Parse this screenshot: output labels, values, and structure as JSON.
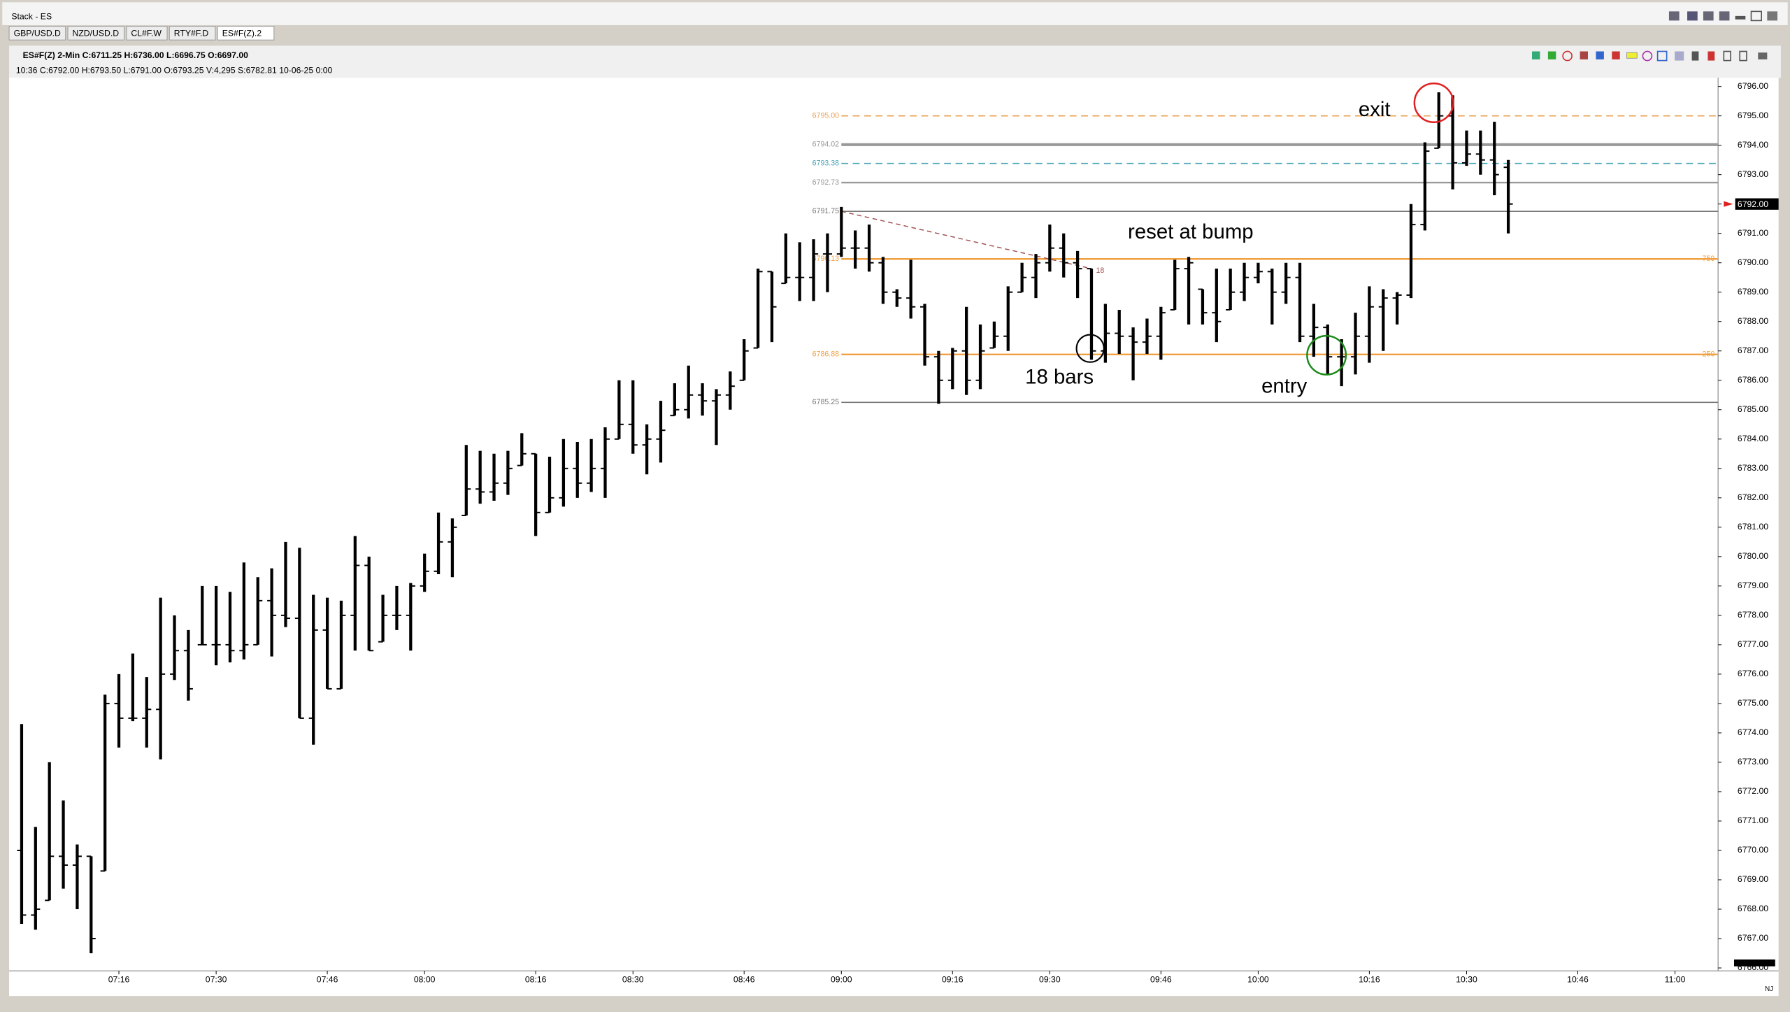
{
  "window": {
    "title": "Stack - ES",
    "tabs": [
      "GBP/USD.D",
      "NZD/USD.D",
      "CL#F.W",
      "RTY#F.D",
      "ES#F(Z).2"
    ],
    "corner": "NJ"
  },
  "header": {
    "line1": "ES#F(Z)  2-Min  C:6711.25  H:6736.00  L:6696.75  O:6697.00",
    "line2": "10:36  C:6792.00  H:6793.50  L:6791.00  O:6793.25  V:4,295  S:6782.81  10-06-25  0:00"
  },
  "annotations": [
    "exit",
    "reset at bump",
    "18 bars",
    "entry"
  ],
  "chart_data": {
    "type": "ohlc",
    "color": "#000000",
    "x": [
      422,
      424,
      426,
      428,
      430,
      432,
      434,
      436,
      438,
      440,
      442,
      444,
      446,
      448,
      450,
      452,
      454,
      456,
      458,
      460,
      462,
      464,
      466,
      468,
      470,
      472,
      474,
      476,
      478,
      480,
      482,
      484,
      486,
      488,
      490,
      492,
      494,
      496,
      498,
      500,
      502,
      504,
      506,
      508,
      510,
      512,
      514,
      516,
      518,
      520,
      522,
      524,
      526,
      528,
      530,
      532,
      534,
      536,
      538,
      540,
      542,
      544,
      546,
      548,
      550,
      552,
      554,
      556,
      558,
      560,
      562,
      564,
      566,
      568,
      570,
      572,
      574,
      576,
      578,
      580,
      582,
      584,
      586,
      588,
      590,
      592,
      594,
      596,
      598,
      600,
      602,
      604,
      606,
      608,
      610,
      612,
      614,
      616,
      618,
      620,
      622,
      624,
      626,
      628,
      630,
      632,
      634,
      636
    ],
    "open": [
      6770,
      6767.8,
      6768.3,
      6769.8,
      6769.5,
      6769.8,
      6769.3,
      6775,
      6774.5,
      6774.5,
      6774.8,
      6776,
      6776.8,
      6777,
      6777,
      6777,
      6776.8,
      6777,
      6778.5,
      6778,
      6777.9,
      6774.5,
      6777.5,
      6775.5,
      6778,
      6779.7,
      6777.1,
      6778,
      6778,
      6779,
      6779.5,
      6780.5,
      6781.4,
      6782.3,
      6782.2,
      6782.5,
      6783.1,
      6783.5,
      6781.5,
      6782,
      6783,
      6782.5,
      6783,
      6784,
      6784.5,
      6783.8,
      6784,
      6784.8,
      6785,
      6785.5,
      6785.3,
      6785.5,
      6786,
      6787.1,
      6789.7,
      6789.3,
      6789.5,
      6789.5,
      6790.3,
      6790.3,
      6790.5,
      6790.5,
      6790,
      6789,
      6788.8,
      6788.5,
      6786.8,
      6786,
      6787,
      6786,
      6787.1,
      6787.5,
      6789,
      6789.5,
      6790,
      6790.5,
      6790,
      6789.8,
      6787,
      6787.6,
      6787.5,
      6787.3,
      6787.5,
      6788.4,
      6789.8,
      6789.1,
      6788.3,
      6788.4,
      6789,
      6789.5,
      6789.7,
      6789,
      6789.5,
      6787.5,
      6787.8,
      6786.8,
      6786.8,
      6787.5,
      6788.5,
      6788.8,
      6788.9,
      6791.3,
      6793.9,
      6795,
      6793.4,
      6793.7,
      6793.5,
      6793.25
    ],
    "high": [
      6774.3,
      6770.8,
      6773,
      6771.7,
      6770.2,
      6769.8,
      6775.3,
      6776,
      6776.7,
      6775.9,
      6778.6,
      6778,
      6777.5,
      6779,
      6779,
      6778.8,
      6779.8,
      6779.3,
      6779.6,
      6780.5,
      6780.3,
      6778.7,
      6778.6,
      6778.5,
      6780.7,
      6780,
      6778.7,
      6779,
      6779.1,
      6780.1,
      6781.5,
      6781.3,
      6783.8,
      6783.6,
      6783.5,
      6783.6,
      6784.2,
      6783.5,
      6783.4,
      6784,
      6783.9,
      6784,
      6784.4,
      6786,
      6786,
      6784.5,
      6785.3,
      6785.9,
      6786.5,
      6785.9,
      6785.7,
      6786.3,
      6787.4,
      6789.8,
      6789.7,
      6791,
      6790.7,
      6790.8,
      6791,
      6791.9,
      6791.1,
      6791.3,
      6790.2,
      6789.1,
      6790.1,
      6788.6,
      6787,
      6787.1,
      6788.5,
      6787.9,
      6788,
      6789.2,
      6790,
      6790.3,
      6791.3,
      6791,
      6790.4,
      6789.8,
      6788.6,
      6788.4,
      6787.8,
      6788.1,
      6788.5,
      6790.1,
      6790.2,
      6789.1,
      6789.8,
      6789.8,
      6790,
      6790,
      6789.8,
      6790,
      6790,
      6788.6,
      6787.9,
      6787.4,
      6788.3,
      6789.2,
      6789.1,
      6789,
      6792,
      6794.1,
      6795.8,
      6795.7,
      6794.5,
      6794.5,
      6794.8,
      6793.5
    ],
    "low": [
      6767.5,
      6767.3,
      6768.3,
      6768.7,
      6768,
      6766.5,
      6769.3,
      6773.5,
      6774.4,
      6773.5,
      6773.1,
      6775.8,
      6775.1,
      6777,
      6776.3,
      6776.4,
      6776.5,
      6777,
      6776.6,
      6777.6,
      6774.5,
      6773.6,
      6775.5,
      6775.5,
      6776.8,
      6776.8,
      6777.1,
      6777.5,
      6776.8,
      6778.8,
      6779.4,
      6779.3,
      6781.4,
      6781.8,
      6781.9,
      6782.1,
      6783.1,
      6780.7,
      6781.5,
      6781.7,
      6782,
      6782.2,
      6782,
      6784,
      6783.5,
      6782.8,
      6783.2,
      6784.8,
      6784.7,
      6784.8,
      6783.8,
      6785,
      6786,
      6787.1,
      6787.3,
      6789.3,
      6788.7,
      6788.7,
      6789,
      6790.2,
      6789.8,
      6789.7,
      6788.6,
      6788.5,
      6788.1,
      6786.5,
      6785.2,
      6785.7,
      6785.5,
      6785.7,
      6787.1,
      6787,
      6789,
      6788.8,
      6789.7,
      6789.5,
      6788.8,
      6786.7,
      6786.6,
      6786.9,
      6786,
      6786.9,
      6786.7,
      6788.4,
      6787.9,
      6787.9,
      6787.3,
      6788.4,
      6788.7,
      6789.3,
      6787.9,
      6788.6,
      6787.3,
      6786.8,
      6786.2,
      6785.8,
      6786.2,
      6786.6,
      6787,
      6787.9,
      6788.8,
      6791.1,
      6793.9,
      6792.5,
      6793.3,
      6793,
      6792.3,
      6791
    ],
    "close": [
      6767.8,
      6768,
      6769.8,
      6769.5,
      6769.8,
      6767,
      6775,
      6774.5,
      6774.5,
      6774.8,
      6776,
      6776.8,
      6775.5,
      6777,
      6777,
      6776.8,
      6777,
      6778.5,
      6778,
      6777.9,
      6774.5,
      6777.5,
      6775.5,
      6778,
      6779.7,
      6776.8,
      6778,
      6778,
      6779,
      6779.5,
      6780.5,
      6781,
      6782.3,
      6782.2,
      6782.5,
      6783,
      6783.5,
      6781.5,
      6782,
      6783,
      6782.5,
      6783,
      6784,
      6784.5,
      6783.8,
      6784,
      6784.3,
      6785,
      6785.5,
      6785.3,
      6785.5,
      6785.8,
      6787,
      6789.7,
      6788.5,
      6789.5,
      6789.5,
      6790.3,
      6790.3,
      6790.5,
      6790.5,
      6790,
      6789,
      6788.8,
      6788.5,
      6786.8,
      6786,
      6787,
      6786,
      6787,
      6787.5,
      6789,
      6789.5,
      6790,
      6790.5,
      6790,
      6789.8,
      6787,
      6787.6,
      6787.5,
      6787.3,
      6787.5,
      6788.3,
      6789.8,
      6790,
      6788.3,
      6788,
      6789,
      6789.5,
      6789.7,
      6789,
      6789.5,
      6787.5,
      6787.8,
      6786.8,
      6786.8,
      6787.5,
      6788.5,
      6788.8,
      6788.9,
      6791.3,
      6793.8,
      6795,
      6793.4,
      6793.7,
      6793.5,
      6793,
      6792
    ],
    "xlim": [
      420.2,
      666.2
    ],
    "xticks": [
      {
        "value": 436,
        "label": "07:16"
      },
      {
        "value": 450,
        "label": "07:30"
      },
      {
        "value": 466,
        "label": "07:46"
      },
      {
        "value": 480,
        "label": "08:00"
      },
      {
        "value": 496,
        "label": "08:16"
      },
      {
        "value": 510,
        "label": "08:30"
      },
      {
        "value": 526,
        "label": "08:46"
      },
      {
        "value": 540,
        "label": "09:00"
      },
      {
        "value": 556,
        "label": "09:16"
      },
      {
        "value": 570,
        "label": "09:30"
      },
      {
        "value": 586,
        "label": "09:46"
      },
      {
        "value": 600,
        "label": "10:00"
      },
      {
        "value": 616,
        "label": "10:16"
      },
      {
        "value": 630,
        "label": "10:30"
      },
      {
        "value": 646,
        "label": "10:46"
      },
      {
        "value": 660,
        "label": "11:00"
      }
    ],
    "ylim": [
      6765.9,
      6796.3
    ],
    "yticks": [
      {
        "value": 6766,
        "label": "6766.00"
      },
      {
        "value": 6767,
        "label": "6767.00"
      },
      {
        "value": 6768,
        "label": "6768.00"
      },
      {
        "value": 6769,
        "label": "6769.00"
      },
      {
        "value": 6770,
        "label": "6770.00"
      },
      {
        "value": 6771,
        "label": "6771.00"
      },
      {
        "value": 6772,
        "label": "6772.00"
      },
      {
        "value": 6773,
        "label": "6773.00"
      },
      {
        "value": 6774,
        "label": "6774.00"
      },
      {
        "value": 6775,
        "label": "6775.00"
      },
      {
        "value": 6776,
        "label": "6776.00"
      },
      {
        "value": 6777,
        "label": "6777.00"
      },
      {
        "value": 6778,
        "label": "6778.00"
      },
      {
        "value": 6779,
        "label": "6779.00"
      },
      {
        "value": 6780,
        "label": "6780.00"
      },
      {
        "value": 6781,
        "label": "6781.00"
      },
      {
        "value": 6782,
        "label": "6782.00"
      },
      {
        "value": 6783,
        "label": "6783.00"
      },
      {
        "value": 6784,
        "label": "6784.00"
      },
      {
        "value": 6785,
        "label": "6785.00"
      },
      {
        "value": 6786,
        "label": "6786.00"
      },
      {
        "value": 6787,
        "label": "6787.00"
      },
      {
        "value": 6788,
        "label": "6788.00"
      },
      {
        "value": 6789,
        "label": "6789.00"
      },
      {
        "value": 6790,
        "label": "6790.00"
      },
      {
        "value": 6791,
        "label": "6791.00"
      },
      {
        "value": 6792,
        "label": "6792.00"
      },
      {
        "value": 6793,
        "label": "6793.00"
      },
      {
        "value": 6794,
        "label": "6794.00"
      },
      {
        "value": 6795,
        "label": "6795.00"
      },
      {
        "value": 6796,
        "label": "6796.00"
      }
    ],
    "grid": false,
    "levels": [
      {
        "value": 6795.0,
        "label": "6795.00",
        "color": "#e8a050",
        "style": "dashed"
      },
      {
        "value": 6794.02,
        "label": "6794.02",
        "color": "#999999",
        "style": "thick"
      },
      {
        "value": 6793.38,
        "label": "6793.38",
        "color": "#4aa3b5",
        "style": "dashed"
      },
      {
        "value": 6792.73,
        "label": "6792.73",
        "color": "#999999",
        "style": "medium"
      },
      {
        "value": 6791.75,
        "label": "6791.75",
        "color": "#777777",
        "style": "thin"
      },
      {
        "value": 6790.13,
        "label": "6790.13",
        "color": "#f0a040",
        "style": "medium",
        "right_label": "750"
      },
      {
        "value": 6786.88,
        "label": "6786.88",
        "color": "#f0a040",
        "style": "medium",
        "right_label": "250"
      },
      {
        "value": 6785.25,
        "label": "6785.25",
        "color": "#777777",
        "style": "thin"
      }
    ],
    "trendline": {
      "x": [
        540,
        576
      ],
      "y": [
        6791.75,
        6789.8
      ],
      "label": "18",
      "color": "#a05050"
    },
    "last_price": {
      "value": 6792,
      "label": "6792.00"
    }
  }
}
